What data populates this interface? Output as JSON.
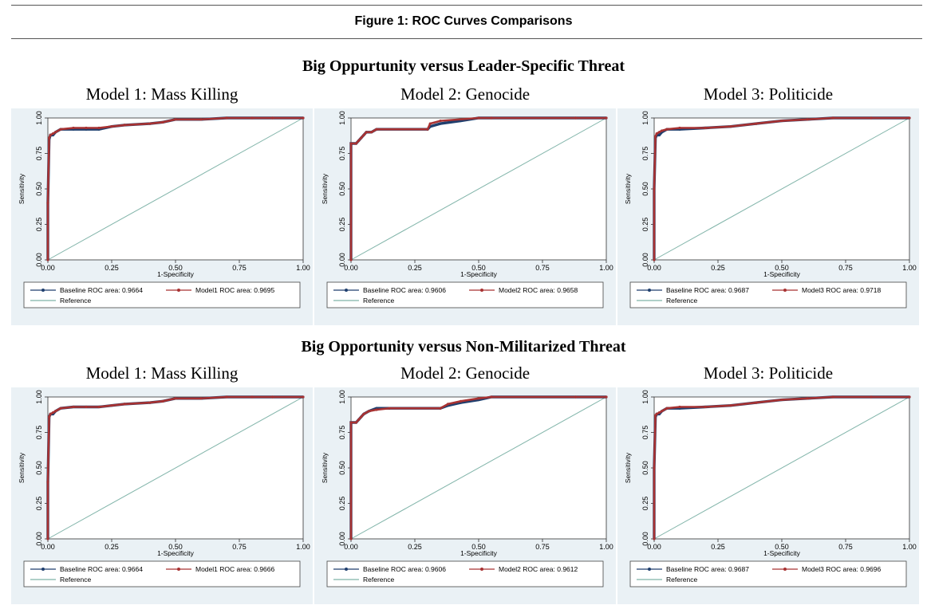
{
  "figure_title": "Figure 1:  ROC Curves Comparisons",
  "sections": [
    {
      "title": "Big Oppurtunity versus Leader-Specific Threat"
    },
    {
      "title": "Big Opportunity versus Non-Militarized Threat"
    }
  ],
  "colors": {
    "baseline": "#1f3f6e",
    "model": "#a83232",
    "reference": "#7fb3a8",
    "plot_bg": "#eaf1f5"
  },
  "chart_data": [
    {
      "type": "line",
      "panel_title": "Model 1: Mass Killing",
      "xlabel": "1-Specificity",
      "ylabel": "Sensitivity",
      "xlim": [
        0,
        1
      ],
      "ylim": [
        0,
        1
      ],
      "xticks": [
        "0.00",
        "0.25",
        "0.50",
        "0.75",
        "1.00"
      ],
      "yticks": [
        "0.00",
        "0.25",
        "0.50",
        "0.75",
        "1.00"
      ],
      "legend": {
        "baseline": "Baseline ROC area: 0.9664",
        "model": "Model1 ROC area: 0.9695",
        "reference": "Reference"
      },
      "series": [
        {
          "key": "baseline",
          "x": [
            0,
            0,
            0.005,
            0.01,
            0.02,
            0.03,
            0.05,
            0.1,
            0.15,
            0.2,
            0.25,
            0.3,
            0.4,
            0.45,
            0.5,
            0.6,
            0.7,
            0.8,
            0.88,
            1
          ],
          "y": [
            0,
            0.4,
            0.85,
            0.88,
            0.88,
            0.9,
            0.92,
            0.92,
            0.92,
            0.92,
            0.94,
            0.95,
            0.96,
            0.97,
            0.99,
            0.99,
            1,
            1,
            1,
            1
          ]
        },
        {
          "key": "model",
          "x": [
            0,
            0,
            0.005,
            0.01,
            0.02,
            0.03,
            0.05,
            0.1,
            0.15,
            0.2,
            0.25,
            0.3,
            0.4,
            0.45,
            0.5,
            0.6,
            0.7,
            0.8,
            0.88,
            1
          ],
          "y": [
            0,
            0.4,
            0.86,
            0.88,
            0.89,
            0.9,
            0.92,
            0.93,
            0.93,
            0.93,
            0.94,
            0.95,
            0.96,
            0.97,
            0.99,
            0.99,
            1,
            1,
            1,
            1
          ]
        },
        {
          "key": "reference",
          "x": [
            0,
            1
          ],
          "y": [
            0,
            1
          ]
        }
      ]
    },
    {
      "type": "line",
      "panel_title": "Model 2: Genocide",
      "xlabel": "1-Specificity",
      "ylabel": "Sensitivity",
      "xlim": [
        0,
        1
      ],
      "ylim": [
        0,
        1
      ],
      "xticks": [
        "0.00",
        "0.25",
        "0.50",
        "0.75",
        "1.00"
      ],
      "yticks": [
        "0.00",
        "0.25",
        "0.50",
        "0.75",
        "1.00"
      ],
      "legend": {
        "baseline": "Baseline ROC area: 0.9606",
        "model": "Model2 ROC area: 0.9658",
        "reference": "Reference"
      },
      "series": [
        {
          "key": "baseline",
          "x": [
            0,
            0,
            0.02,
            0.03,
            0.04,
            0.05,
            0.06,
            0.08,
            0.1,
            0.3,
            0.31,
            0.35,
            0.43,
            0.5,
            0.55,
            0.88,
            1
          ],
          "y": [
            0,
            0.82,
            0.82,
            0.84,
            0.86,
            0.88,
            0.9,
            0.9,
            0.92,
            0.92,
            0.94,
            0.96,
            0.98,
            1,
            1,
            1,
            1
          ]
        },
        {
          "key": "model",
          "x": [
            0,
            0,
            0.02,
            0.03,
            0.04,
            0.05,
            0.06,
            0.08,
            0.1,
            0.3,
            0.31,
            0.35,
            0.5,
            0.55,
            0.88,
            1
          ],
          "y": [
            0,
            0.82,
            0.82,
            0.84,
            0.86,
            0.88,
            0.9,
            0.9,
            0.92,
            0.92,
            0.96,
            0.98,
            1,
            1,
            1,
            1
          ]
        },
        {
          "key": "reference",
          "x": [
            0,
            1
          ],
          "y": [
            0,
            1
          ]
        }
      ]
    },
    {
      "type": "line",
      "panel_title": "Model 3: Politicide",
      "xlabel": "1-Specificity",
      "ylabel": "Sensitivity",
      "xlim": [
        0,
        1
      ],
      "ylim": [
        0,
        1
      ],
      "xticks": [
        "0.00",
        "0.25",
        "0.50",
        "0.75",
        "1.00"
      ],
      "yticks": [
        "0.00",
        "0.25",
        "0.50",
        "0.75",
        "1.00"
      ],
      "legend": {
        "baseline": "Baseline ROC area: 0.9687",
        "model": "Model3 ROC area: 0.9718",
        "reference": "Reference"
      },
      "series": [
        {
          "key": "baseline",
          "x": [
            0,
            0,
            0.005,
            0.01,
            0.02,
            0.03,
            0.05,
            0.1,
            0.2,
            0.3,
            0.4,
            0.5,
            0.6,
            0.7,
            0.85,
            1
          ],
          "y": [
            0,
            0.5,
            0.86,
            0.88,
            0.88,
            0.9,
            0.92,
            0.92,
            0.93,
            0.94,
            0.96,
            0.98,
            0.99,
            1,
            1,
            1
          ]
        },
        {
          "key": "model",
          "x": [
            0,
            0,
            0.005,
            0.01,
            0.02,
            0.03,
            0.05,
            0.1,
            0.2,
            0.3,
            0.4,
            0.5,
            0.6,
            0.7,
            0.85,
            1
          ],
          "y": [
            0,
            0.5,
            0.87,
            0.89,
            0.9,
            0.91,
            0.92,
            0.93,
            0.93,
            0.94,
            0.96,
            0.98,
            0.99,
            1,
            1,
            1
          ]
        },
        {
          "key": "reference",
          "x": [
            0,
            1
          ],
          "y": [
            0,
            1
          ]
        }
      ]
    },
    {
      "type": "line",
      "panel_title": "Model 1: Mass Killing",
      "xlabel": "1-Specificity",
      "ylabel": "Sensitivity",
      "xlim": [
        0,
        1
      ],
      "ylim": [
        0,
        1
      ],
      "xticks": [
        "0.00",
        "0.25",
        "0.50",
        "0.75",
        "1.00"
      ],
      "yticks": [
        "0.00",
        "0.25",
        "0.50",
        "0.75",
        "1.00"
      ],
      "legend": {
        "baseline": "Baseline ROC area: 0.9664",
        "model": "Model1 ROC area: 0.9666",
        "reference": "Reference"
      },
      "series": [
        {
          "key": "baseline",
          "x": [
            0,
            0,
            0.005,
            0.01,
            0.02,
            0.03,
            0.05,
            0.1,
            0.15,
            0.2,
            0.25,
            0.3,
            0.4,
            0.45,
            0.5,
            0.6,
            0.7,
            0.8,
            0.88,
            1
          ],
          "y": [
            0,
            0.4,
            0.86,
            0.88,
            0.88,
            0.9,
            0.92,
            0.93,
            0.93,
            0.93,
            0.94,
            0.95,
            0.96,
            0.97,
            0.99,
            0.99,
            1,
            1,
            1,
            1
          ]
        },
        {
          "key": "model",
          "x": [
            0,
            0,
            0.005,
            0.01,
            0.02,
            0.03,
            0.05,
            0.1,
            0.15,
            0.2,
            0.25,
            0.3,
            0.4,
            0.45,
            0.5,
            0.6,
            0.7,
            0.8,
            0.88,
            1
          ],
          "y": [
            0,
            0.4,
            0.86,
            0.88,
            0.89,
            0.9,
            0.92,
            0.93,
            0.93,
            0.93,
            0.94,
            0.95,
            0.96,
            0.97,
            0.99,
            0.99,
            1,
            1,
            1,
            1
          ]
        },
        {
          "key": "reference",
          "x": [
            0,
            1
          ],
          "y": [
            0,
            1
          ]
        }
      ]
    },
    {
      "type": "line",
      "panel_title": "Model 2: Genocide",
      "xlabel": "1-Specificity",
      "ylabel": "Sensitivity",
      "xlim": [
        0,
        1
      ],
      "ylim": [
        0,
        1
      ],
      "xticks": [
        "0.00",
        "0.25",
        "0.50",
        "0.75",
        "1.00"
      ],
      "yticks": [
        "0.00",
        "0.25",
        "0.50",
        "0.75",
        "1.00"
      ],
      "legend": {
        "baseline": "Baseline ROC area: 0.9606",
        "model": "Model2 ROC area: 0.9612",
        "reference": "Reference"
      },
      "series": [
        {
          "key": "baseline",
          "x": [
            0,
            0,
            0.02,
            0.03,
            0.04,
            0.05,
            0.07,
            0.1,
            0.15,
            0.35,
            0.38,
            0.43,
            0.5,
            0.55,
            0.88,
            1
          ],
          "y": [
            0,
            0.82,
            0.82,
            0.84,
            0.86,
            0.88,
            0.9,
            0.92,
            0.92,
            0.92,
            0.94,
            0.96,
            0.98,
            1,
            1,
            1
          ]
        },
        {
          "key": "model",
          "x": [
            0,
            0,
            0.02,
            0.03,
            0.04,
            0.05,
            0.07,
            0.1,
            0.15,
            0.35,
            0.38,
            0.43,
            0.5,
            0.55,
            0.88,
            1
          ],
          "y": [
            0,
            0.82,
            0.82,
            0.84,
            0.86,
            0.88,
            0.9,
            0.91,
            0.92,
            0.92,
            0.95,
            0.97,
            0.99,
            1,
            1,
            1
          ]
        },
        {
          "key": "reference",
          "x": [
            0,
            1
          ],
          "y": [
            0,
            1
          ]
        }
      ]
    },
    {
      "type": "line",
      "panel_title": "Model 3: Politicide",
      "xlabel": "1-Specificity",
      "ylabel": "Sensitivity",
      "xlim": [
        0,
        1
      ],
      "ylim": [
        0,
        1
      ],
      "xticks": [
        "0.00",
        "0.25",
        "0.50",
        "0.75",
        "1.00"
      ],
      "yticks": [
        "0.00",
        "0.25",
        "0.50",
        "0.75",
        "1.00"
      ],
      "legend": {
        "baseline": "Baseline ROC area: 0.9687",
        "model": "Model3 ROC area: 0.9696",
        "reference": "Reference"
      },
      "series": [
        {
          "key": "baseline",
          "x": [
            0,
            0,
            0.005,
            0.01,
            0.02,
            0.03,
            0.05,
            0.1,
            0.2,
            0.3,
            0.4,
            0.5,
            0.6,
            0.7,
            0.85,
            1
          ],
          "y": [
            0,
            0.5,
            0.86,
            0.88,
            0.88,
            0.9,
            0.92,
            0.92,
            0.93,
            0.94,
            0.96,
            0.98,
            0.99,
            1,
            1,
            1
          ]
        },
        {
          "key": "model",
          "x": [
            0,
            0,
            0.005,
            0.01,
            0.02,
            0.03,
            0.05,
            0.1,
            0.2,
            0.3,
            0.4,
            0.5,
            0.6,
            0.7,
            0.85,
            1
          ],
          "y": [
            0,
            0.5,
            0.87,
            0.88,
            0.89,
            0.9,
            0.92,
            0.93,
            0.93,
            0.94,
            0.96,
            0.98,
            0.99,
            1,
            1,
            1
          ]
        },
        {
          "key": "reference",
          "x": [
            0,
            1
          ],
          "y": [
            0,
            1
          ]
        }
      ]
    }
  ]
}
